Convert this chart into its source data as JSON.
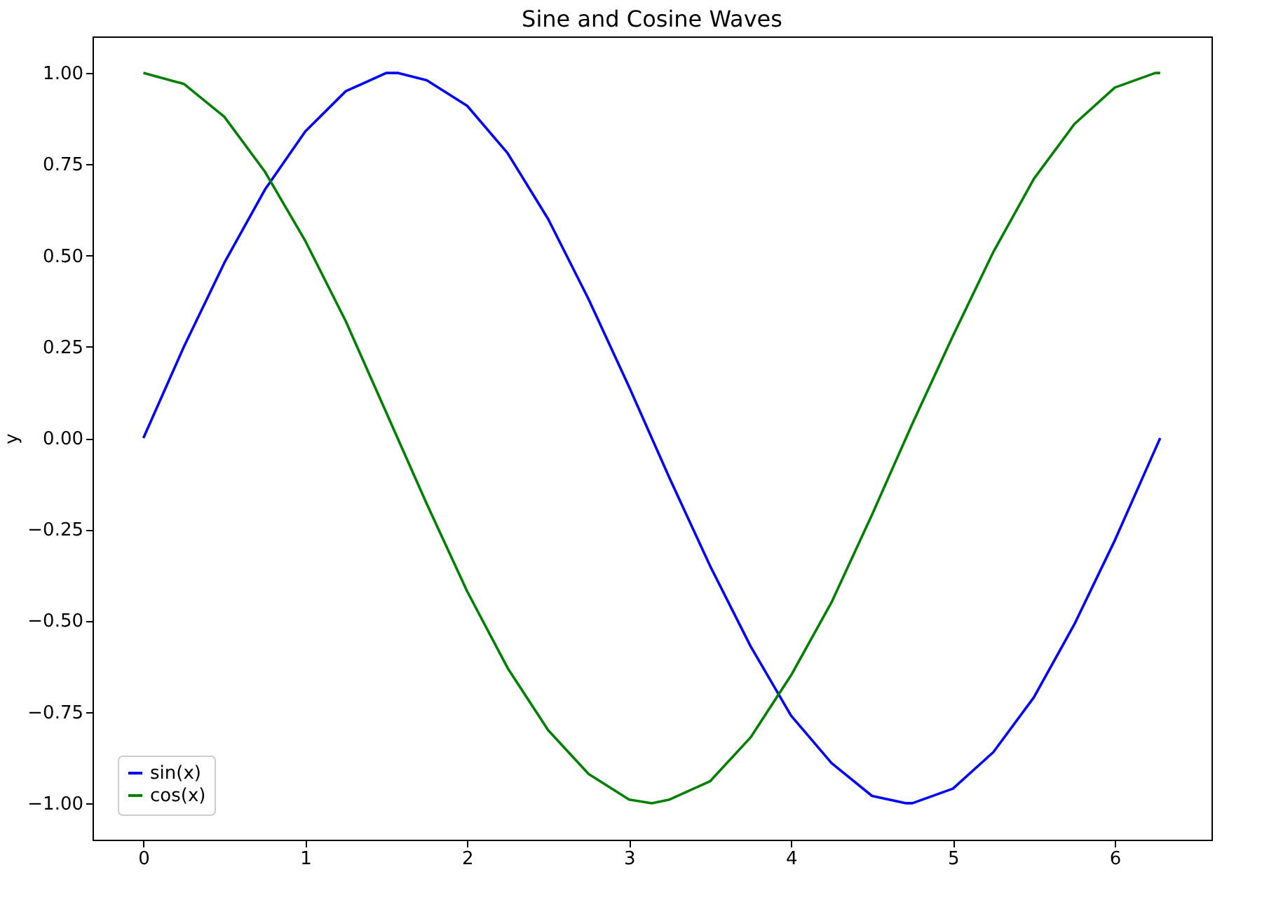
{
  "chart_data": {
    "type": "line",
    "title": "Sine and Cosine Waves",
    "ylabel": "y",
    "x": [
      0,
      0.25,
      0.5,
      0.75,
      1.0,
      1.25,
      1.5,
      1.57,
      1.75,
      2.0,
      2.25,
      2.5,
      2.75,
      3.0,
      3.14,
      3.25,
      3.5,
      3.75,
      4.0,
      4.25,
      4.5,
      4.71,
      4.75,
      5.0,
      5.25,
      5.5,
      5.75,
      6.0,
      6.25,
      6.28
    ],
    "series": [
      {
        "name": "sin(x)",
        "color": "#0000ff",
        "values": [
          0,
          0.25,
          0.48,
          0.68,
          0.84,
          0.95,
          1.0,
          1.0,
          0.98,
          0.91,
          0.78,
          0.6,
          0.38,
          0.14,
          0,
          -0.11,
          -0.35,
          -0.57,
          -0.76,
          -0.89,
          -0.98,
          -1.0,
          -1.0,
          -0.96,
          -0.86,
          -0.71,
          -0.51,
          -0.28,
          -0.03,
          0
        ]
      },
      {
        "name": "cos(x)",
        "color": "#008000",
        "values": [
          1,
          0.97,
          0.88,
          0.73,
          0.54,
          0.32,
          0.07,
          0,
          -0.18,
          -0.42,
          -0.63,
          -0.8,
          -0.92,
          -0.99,
          -1.0,
          -0.99,
          -0.94,
          -0.82,
          -0.65,
          -0.45,
          -0.21,
          0,
          0.04,
          0.28,
          0.51,
          0.71,
          0.86,
          0.96,
          1.0,
          1.0
        ]
      }
    ],
    "xlim": [
      -0.314,
      6.597
    ],
    "xticks": [
      0,
      1,
      2,
      3,
      4,
      5,
      6
    ],
    "ylim": [
      -1.1,
      1.1
    ],
    "yticks": [
      {
        "value": -1,
        "label": "−1.00"
      },
      {
        "value": -0.75,
        "label": "−0.75"
      },
      {
        "value": -0.5,
        "label": "−0.50"
      },
      {
        "value": -0.25,
        "label": "−0.25"
      },
      {
        "value": 0,
        "label": "0.00"
      },
      {
        "value": 0.25,
        "label": "0.25"
      },
      {
        "value": 0.5,
        "label": "0.50"
      },
      {
        "value": 0.75,
        "label": "0.75"
      },
      {
        "value": 1,
        "label": "1.00"
      }
    ],
    "grid": false,
    "legend": "bottom left",
    "line_style": "solid"
  }
}
